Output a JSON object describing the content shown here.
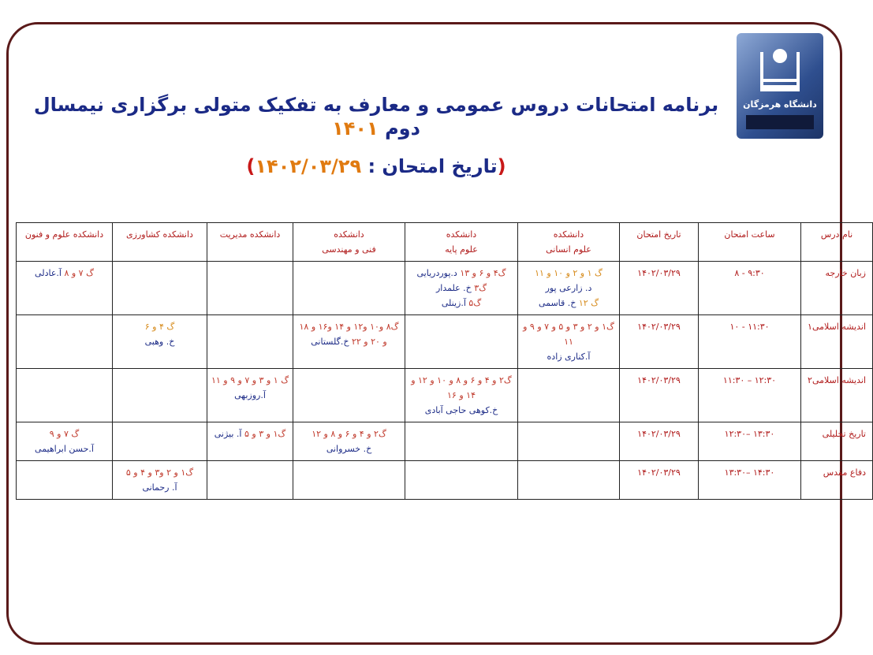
{
  "logo": {
    "university": "دانشگاه هرمزگان"
  },
  "header": {
    "title": "برنامه امتحانات دروس عمومی و معارف به تفکیک متولی برگزاری نیمسال دوم",
    "year": "۱۴۰۱",
    "subtitle_open": "(",
    "subtitle_label": "تاریخ امتحان : ",
    "subtitle_date": "۱۴۰۲/۰۳/۲۹",
    "subtitle_close": ")"
  },
  "colors": {
    "title": "#1b2a86",
    "accent": "#e07a10",
    "header_text": "#b01a1a",
    "frame": "#5a1a1a"
  },
  "table": {
    "columns": [
      [
        "نام درس"
      ],
      [
        "ساعت امتحان"
      ],
      [
        "تاریخ امتحان"
      ],
      [
        "دانشکده",
        "علوم انسانی"
      ],
      [
        "دانشکده",
        "علوم پایه"
      ],
      [
        "دانشکده",
        "فنی و مهندسی"
      ],
      [
        "دانشکده مدیریت"
      ],
      [
        "دانشکده کشاورزی"
      ],
      [
        "دانشکده علوم و فنون"
      ]
    ],
    "rows": [
      {
        "course": "زبان خارجه",
        "time": "۸ - ۹:۳۰",
        "date": "۱۴۰۲/۰۳/۲۹",
        "cells": [
          [
            [
              [
                "o",
                "گ ۱ و ۲ و ۱۰  و ۱۱"
              ]
            ],
            [
              [
                "b",
                "د. زارعی پور"
              ]
            ],
            [
              [
                "o",
                "گ ۱۲ "
              ],
              [
                "b",
                "خ. قاسمی"
              ]
            ]
          ],
          [
            [
              [
                "r",
                "گ۴ و ۶ و ۱۳ "
              ],
              [
                "b",
                "د.پوردریایی"
              ]
            ],
            [
              [
                "r",
                "گ۳ "
              ],
              [
                "b",
                "خ. علمدار"
              ]
            ],
            [
              [
                "r",
                "گ۵ "
              ],
              [
                "b",
                " آ.زینلی"
              ]
            ]
          ],
          [],
          [],
          [],
          [
            [
              [
                "r",
                "گ ۷ و ۸ "
              ],
              [
                "b",
                "آ.عادلی"
              ]
            ]
          ]
        ]
      },
      {
        "course": "اندیشه اسلامی۱",
        "time": "۱۰ - ۱۱:۳۰",
        "date": "۱۴۰۲/۰۳/۲۹",
        "cells": [
          [
            [
              [
                "r",
                "گ۱ و ۲ و ۳ و ۵ و ۷ و ۹ و ۱۱"
              ]
            ],
            [
              [
                "b",
                "آ.کناری زاده"
              ]
            ]
          ],
          [],
          [
            [
              [
                "r",
                "گ۸ و۱۰ و۱۲ و ۱۴ و۱۶ و ۱۸"
              ]
            ],
            [
              [
                "r",
                "و ۲۰ و ۲۲ "
              ],
              [
                "b",
                " خ.گلستانی"
              ]
            ]
          ],
          [],
          [
            [
              [
                "o",
                "گ ۴ و ۶"
              ]
            ],
            [
              [
                "b",
                "خ. وهبی"
              ]
            ]
          ],
          []
        ]
      },
      {
        "course": "اندیشه اسلامی۲",
        "time": "۱۱:۳۰ – ۱۲:۳۰",
        "date": "۱۴۰۲/۰۳/۲۹",
        "cells": [
          [],
          [
            [
              [
                "r",
                "گ۲ و ۴ و ۶ و ۸ و ۱۰ و ۱۲ و ۱۴ و ۱۶"
              ]
            ],
            [
              [
                "b",
                "خ.کوهی حاجی آبادی"
              ]
            ]
          ],
          [],
          [
            [
              [
                "r",
                "گ ۱ و ۳ و ۷ و ۹ و ۱۱"
              ]
            ],
            [
              [
                "b",
                "آ.روزبهی"
              ]
            ]
          ],
          [],
          []
        ]
      },
      {
        "course": "تاریخ تحلیلی",
        "time": "۱۲:۳۰– ۱۳:۳۰",
        "date": "۱۴۰۲/۰۳/۲۹",
        "cells": [
          [],
          [],
          [
            [
              [
                "r",
                "گ۲ و ۴ و ۶ و ۸ و ۱۲"
              ]
            ],
            [
              [
                "b",
                "خ. خسروانی"
              ]
            ]
          ],
          [
            [
              [
                "r",
                "گ۱ و ۳ و ۵ "
              ],
              [
                "b",
                "آ. بیژنی"
              ]
            ]
          ],
          [],
          [
            [
              [
                "r",
                "گ ۷ و ۹"
              ]
            ],
            [
              [
                "b",
                "آ.حسن ابراهیمی"
              ]
            ]
          ]
        ]
      },
      {
        "course": "دفاع مقدس",
        "time": "۱۳:۳۰– ۱۴:۳۰",
        "date": "۱۴۰۲/۰۳/۲۹",
        "cells": [
          [],
          [],
          [],
          [],
          [
            [
              [
                "r",
                "گ۱ و ۲ و۳ و ۴ و ۵"
              ]
            ],
            [
              [
                "b",
                "آ. رحمانی"
              ]
            ]
          ],
          []
        ]
      }
    ]
  }
}
